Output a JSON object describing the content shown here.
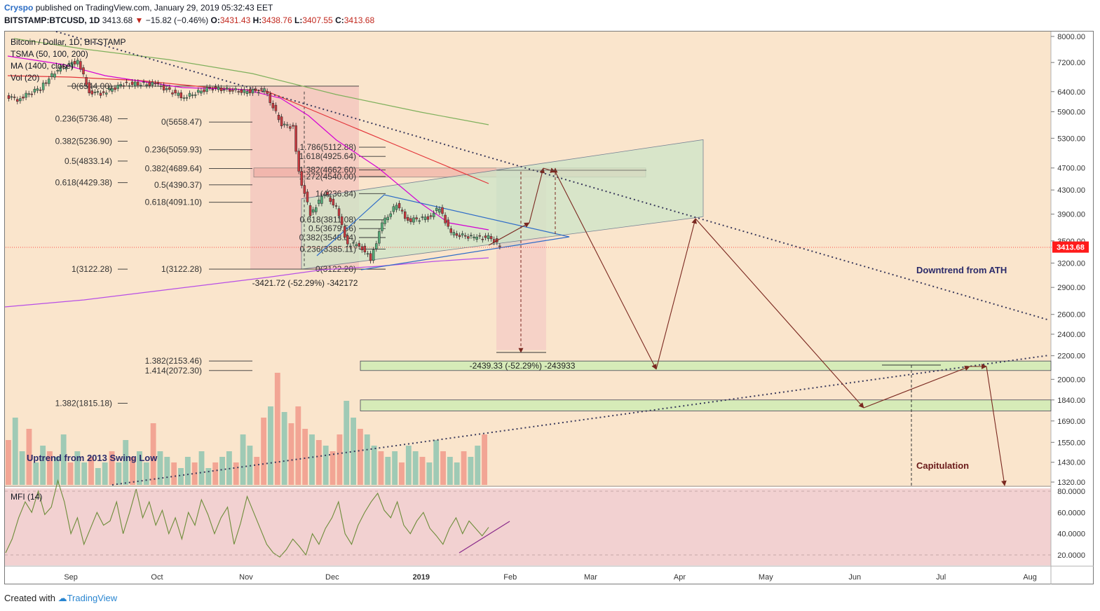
{
  "header": {
    "author": "Cryspo",
    "published": "published on TradingView.com, January 29, 2019 05:32:43 EET",
    "symbol": "BITSTAMP:BTCUSD, 1D",
    "last": "3413.68",
    "change_arrow": "▼",
    "change": "−15.82 (−0.46%)",
    "o_label": "O:",
    "o": "3431.43",
    "h_label": "H:",
    "h": "3438.76",
    "l_label": "L:",
    "l": "3407.55",
    "c_label": "C:",
    "c": "3413.68"
  },
  "legend": [
    "Bitcoin / Dollar, 1D, BITSTAMP",
    "TSMA (50, 100, 200)",
    "MA (1400, close)",
    "Vol (20)"
  ],
  "mfi_label": "MFI (14)",
  "annotations": {
    "downtrend": "Downtrend from ATH",
    "uptrend": "Uptrend from 2013 Swing Low",
    "capitulation": "Capitulation",
    "measure1": "-3421.72 (-52.29%) -342172",
    "measure2": "-2439.33 (-52.29%) -243933"
  },
  "fib_labels": [
    "0(6544.00)",
    "0.236(5736.48)",
    "0.382(5236.90)",
    "0.5(4833.14)",
    "0.618(4429.38)",
    "1(3122.28)",
    "0(5658.47)",
    "0.236(5059.93)",
    "0.382(4689.64)",
    "0.5(4390.37)",
    "0.618(4091.10)",
    "1(3122.28)",
    "1.786(5112.88)",
    "1.618(4925.64)",
    "1.382(4662.60)",
    "1.272(4540.00)",
    "1(4236.84)",
    "0.618(3811.08)",
    "0.5(3679.56)",
    "0.382(3548.04)",
    "0.236(3385.11)",
    "0(3122.20)",
    "1.382(2153.46)",
    "1.414(2072.30)",
    "1.382(1815.18)"
  ],
  "price_label": "3413.68",
  "colors": {
    "background": "#fae5cc",
    "mfi_background": "#f2d1d1",
    "up": "#55ad79",
    "down": "#c8393f",
    "ema50": "#d400d4",
    "ema100": "#e3353a",
    "ema200": "#7fb05c",
    "ma1400": "#b84fe6",
    "trendline": "#3a3a5c",
    "projection": "#7a2820",
    "last_price": "#ff1b1b"
  },
  "chart_data": {
    "type": "candlestick",
    "x_axis": {
      "labels": [
        "Sep",
        "Oct",
        "Nov",
        "Dec",
        "2019",
        "Feb",
        "Mar",
        "Apr",
        "May",
        "Jun",
        "Jul",
        "Aug"
      ]
    },
    "y_axis": {
      "scale": "log",
      "ticks": [
        "8000.00",
        "7200.00",
        "6400.00",
        "5900.00",
        "5300.00",
        "4700.00",
        "4300.00",
        "3900.00",
        "3500.00",
        "3200.00",
        "2900.00",
        "2600.00",
        "2400.00",
        "2200.00",
        "2000.00",
        "1840.00",
        "1690.00",
        "1550.00",
        "1430.00",
        "1320.00"
      ]
    },
    "mfi_axis": {
      "ticks": [
        "80.0000",
        "60.0000",
        "40.0000",
        "20.0000"
      ],
      "range": [
        10,
        92
      ]
    },
    "last_price": 3413.68,
    "ohlc_last": {
      "open": 3431.43,
      "high": 3438.76,
      "low": 3407.55,
      "close": 3413.68
    },
    "price_path": [
      [
        "2018-08-10",
        6300
      ],
      [
        "2018-08-14",
        6200
      ],
      [
        "2018-08-22",
        6500
      ],
      [
        "2018-08-28",
        7000
      ],
      [
        "2018-09-04",
        7250
      ],
      [
        "2018-09-08",
        6400
      ],
      [
        "2018-09-12",
        6350
      ],
      [
        "2018-09-20",
        6600
      ],
      [
        "2018-10-01",
        6600
      ],
      [
        "2018-10-11",
        6250
      ],
      [
        "2018-10-20",
        6500
      ],
      [
        "2018-11-01",
        6400
      ],
      [
        "2018-11-08",
        6450
      ],
      [
        "2018-11-14",
        5600
      ],
      [
        "2018-11-18",
        5550
      ],
      [
        "2018-11-20",
        4600
      ],
      [
        "2018-11-24",
        3900
      ],
      [
        "2018-11-29",
        4250
      ],
      [
        "2018-12-03",
        4000
      ],
      [
        "2018-12-07",
        3450
      ],
      [
        "2018-12-11",
        3450
      ],
      [
        "2018-12-15",
        3250
      ],
      [
        "2018-12-19",
        3750
      ],
      [
        "2018-12-24",
        4050
      ],
      [
        "2018-12-28",
        3800
      ],
      [
        "2019-01-04",
        3850
      ],
      [
        "2019-01-08",
        4000
      ],
      [
        "2019-01-12",
        3600
      ],
      [
        "2019-01-20",
        3550
      ],
      [
        "2019-01-26",
        3550
      ],
      [
        "2019-01-29",
        3413.68
      ]
    ],
    "projection_path": [
      [
        "2019-02-18",
        4700
      ],
      [
        "2019-02-20",
        4700
      ],
      [
        "2019-03-29",
        2080
      ],
      [
        "2019-04-14",
        3850
      ],
      [
        "2019-06-10",
        1770
      ],
      [
        "2019-07-22",
        2090
      ],
      [
        "2019-08-04",
        1300
      ]
    ],
    "volume": [
      0.4,
      0.6,
      0.3,
      0.5,
      0.2,
      0.35,
      0.3,
      0.25,
      0.45,
      0.2,
      0.3,
      0.2,
      0.25,
      0.15,
      0.2,
      0.3,
      0.2,
      0.4,
      0.25,
      0.3,
      0.2,
      0.55,
      0.3,
      0.25,
      0.2,
      0.15,
      0.25,
      0.2,
      0.3,
      0.15,
      0.2,
      0.25,
      0.3,
      0.2,
      0.45,
      0.35,
      0.25,
      0.6,
      0.7,
      1.0,
      0.65,
      0.55,
      0.7,
      0.5,
      0.45,
      0.4,
      0.35,
      0.3,
      0.45,
      0.75,
      0.6,
      0.5,
      0.45,
      0.35,
      0.3,
      0.25,
      0.3,
      0.2,
      0.35,
      0.3,
      0.25,
      0.2,
      0.4,
      0.3,
      0.25,
      0.2,
      0.3,
      0.25,
      0.35,
      0.45
    ],
    "mfi": [
      22,
      35,
      55,
      70,
      60,
      80,
      58,
      65,
      90,
      70,
      40,
      55,
      30,
      45,
      60,
      48,
      52,
      70,
      40,
      60,
      82,
      55,
      70,
      48,
      62,
      40,
      55,
      35,
      60,
      48,
      72,
      58,
      40,
      55,
      65,
      30,
      50,
      75,
      60,
      45,
      30,
      22,
      18,
      25,
      35,
      28,
      20,
      40,
      30,
      45,
      55,
      70,
      40,
      30,
      48,
      60,
      70,
      78,
      62,
      55,
      70,
      48,
      40,
      52,
      60,
      45,
      38,
      30,
      45,
      55,
      40,
      52,
      45,
      38,
      46
    ]
  }
}
